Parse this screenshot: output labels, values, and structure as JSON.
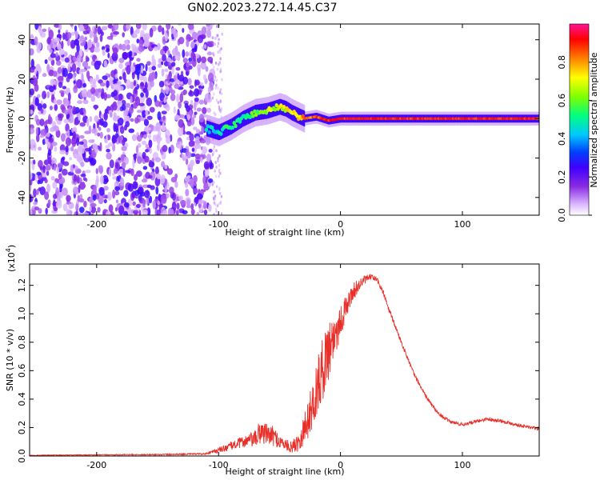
{
  "title": "GN02.2023.272.14.45.C37",
  "chart_data": [
    {
      "type": "heatmap",
      "title": "GN02.2023.272.14.45.C37",
      "xlabel": "Height of straight line (km)",
      "ylabel": "Frequency (Hz)",
      "xlim": [
        -255,
        163
      ],
      "ylim": [
        -49,
        48
      ],
      "x_ticks": [
        -200,
        -100,
        0,
        100
      ],
      "x_tick_labels": [
        "-200",
        "-100",
        "0",
        "100"
      ],
      "y_ticks": [
        -40,
        -20,
        0,
        20,
        40
      ],
      "y_tick_labels": [
        "-40",
        "-20",
        "0",
        "20",
        "40"
      ],
      "colorbar": {
        "label": "Normalized spectral amplitude",
        "range": [
          0,
          1
        ],
        "ticks": [
          0.0,
          0.2,
          0.4,
          0.6,
          0.8
        ],
        "tick_labels": [
          "0.0",
          "0.2",
          "0.4",
          "0.6",
          "0.8"
        ],
        "colors": [
          "#ffffff",
          "#d9b3ff",
          "#8a2be2",
          "#3f00ff",
          "#0040ff",
          "#00c8ff",
          "#00ff80",
          "#7fff00",
          "#ffff00",
          "#ff8000",
          "#ff0000",
          "#ff1493"
        ]
      },
      "noise_region_x": [
        -255,
        -105
      ],
      "signal_track": {
        "x": [
          -110,
          -100,
          -90,
          -80,
          -70,
          -60,
          -50,
          -45,
          -40,
          -30,
          -20,
          -10,
          0,
          50,
          100,
          163
        ],
        "frequency": [
          -5,
          -7,
          -4,
          0,
          3,
          4,
          6,
          5,
          3,
          0,
          1,
          -1,
          0,
          0,
          0,
          0
        ],
        "amplitude": [
          0.45,
          0.5,
          0.55,
          0.55,
          0.6,
          0.65,
          0.7,
          0.7,
          0.75,
          0.8,
          0.85,
          0.9,
          0.9,
          0.9,
          0.9,
          0.9
        ]
      }
    },
    {
      "type": "line",
      "xlabel": "Height of straight line (km)",
      "ylabel": "SNR (10 * v/v)",
      "y_multiplier_label": "(x10",
      "y_multiplier_exp": "4",
      "xlim": [
        -255,
        163
      ],
      "ylim": [
        0,
        1.35
      ],
      "x_ticks": [
        -200,
        -100,
        0,
        100
      ],
      "x_tick_labels": [
        "-200",
        "-100",
        "0",
        "100"
      ],
      "y_ticks": [
        0.0,
        0.2,
        0.4,
        0.6,
        0.8,
        1.0,
        1.2
      ],
      "y_tick_labels": [
        "0.0",
        "0.2",
        "0.4",
        "0.6",
        "0.8",
        "1.0",
        "1.2"
      ],
      "line_color": "#e8302a",
      "series": [
        {
          "x": [
            -255,
            -200,
            -150,
            -110,
            -100,
            -90,
            -80,
            -70,
            -65,
            -60,
            -55,
            -50,
            -45,
            -40,
            -35,
            -30,
            -25,
            -20,
            -15,
            -10,
            -5,
            0,
            5,
            10,
            15,
            20,
            25,
            30,
            35,
            40,
            50,
            60,
            70,
            80,
            90,
            100,
            110,
            120,
            130,
            140,
            150,
            163
          ],
          "y": [
            0.005,
            0.008,
            0.01,
            0.015,
            0.04,
            0.07,
            0.1,
            0.12,
            0.18,
            0.15,
            0.14,
            0.1,
            0.08,
            0.06,
            0.1,
            0.18,
            0.3,
            0.45,
            0.6,
            0.75,
            0.85,
            0.95,
            1.05,
            1.15,
            1.2,
            1.24,
            1.26,
            1.24,
            1.15,
            1.02,
            0.8,
            0.58,
            0.42,
            0.3,
            0.24,
            0.22,
            0.24,
            0.26,
            0.25,
            0.23,
            0.21,
            0.19
          ],
          "noise": [
            0.002,
            0.003,
            0.004,
            0.006,
            0.02,
            0.03,
            0.04,
            0.06,
            0.1,
            0.07,
            0.07,
            0.05,
            0.04,
            0.04,
            0.07,
            0.12,
            0.15,
            0.2,
            0.22,
            0.22,
            0.18,
            0.12,
            0.08,
            0.06,
            0.05,
            0.03,
            0.02,
            0.02,
            0.02,
            0.02,
            0.015,
            0.015,
            0.015,
            0.012,
            0.012,
            0.012,
            0.012,
            0.012,
            0.012,
            0.012,
            0.012,
            0.012
          ]
        }
      ]
    }
  ]
}
